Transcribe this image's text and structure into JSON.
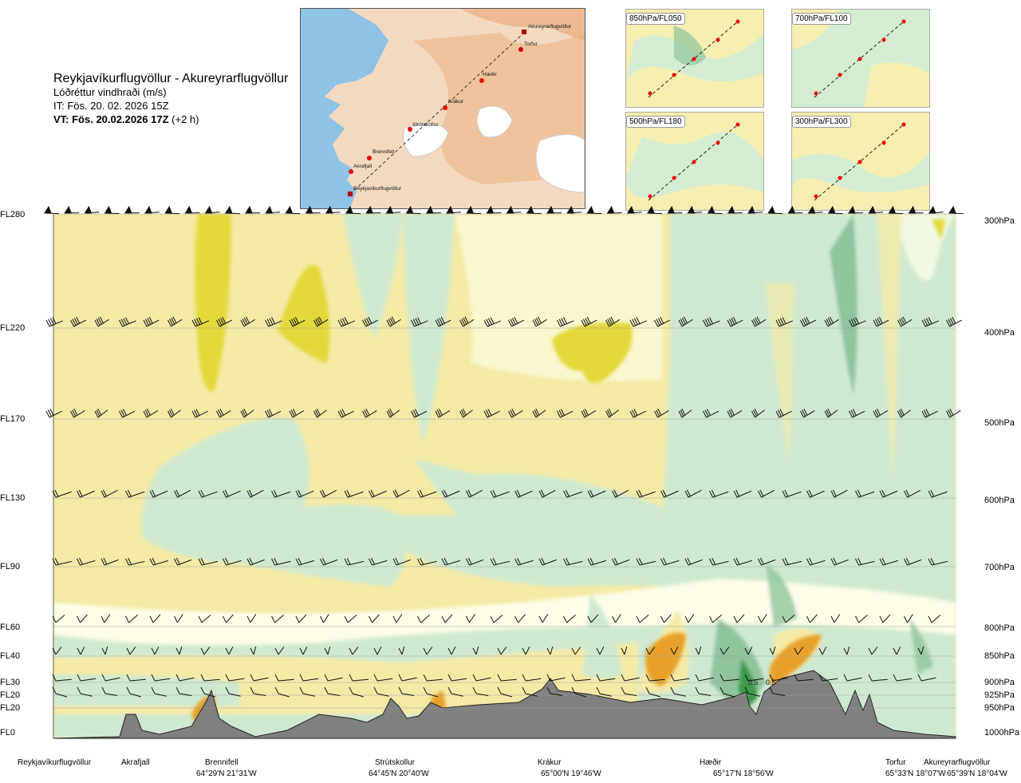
{
  "header": {
    "route": "Reykjavíkurflugvöllur - Akureyrarflugvöllur",
    "quantity": "Lóðréttur vindhraði (m/s)",
    "issue_time": "IT: Fös. 20. 02. 2026 15Z",
    "valid_time": "VT: Fös. 20.02.2026 17Z",
    "lead": "(+2 h)"
  },
  "route_map": {
    "waypoints": [
      "Akureyrarflugvöllur",
      "Torfur",
      "Hæðir",
      "Krákur",
      "Strútskollur",
      "Brennifell",
      "Akrafjall",
      "Reykjavíkurflugvöllur"
    ]
  },
  "thumbnails": [
    {
      "label": "850hPa/FL050"
    },
    {
      "label": "700hPa/FL100"
    },
    {
      "label": "500hPa/FL180"
    },
    {
      "label": "300hPa/FL300"
    }
  ],
  "colors": {
    "strong_up": "#e3d93a",
    "weak_up": "#f4eaa6",
    "neutral": "#fdfde8",
    "weak_down": "#cfe9d0",
    "strong_down": "#8fc49c",
    "very_strong": "#3a9a4a",
    "terrain": "#808080",
    "orange": "#e7a12a"
  },
  "chart_data": {
    "type": "heatmap",
    "title": "Reykjavíkurflugvöllur - Akureyrarflugvöllur",
    "quantity": "Lóðréttur vindhraði (m/s)",
    "flight_levels": [
      {
        "fl": "FL280",
        "hpa": "300hPa"
      },
      {
        "fl": "FL220",
        "hpa": "400hPa"
      },
      {
        "fl": "FL170",
        "hpa": "500hPa"
      },
      {
        "fl": "FL130",
        "hpa": "600hPa"
      },
      {
        "fl": "FL90",
        "hpa": "700hPa"
      },
      {
        "fl": "FL60",
        "hpa": "800hPa"
      },
      {
        "fl": "FL40",
        "hpa": "850hPa"
      },
      {
        "fl": "FL30",
        "hpa": "900hPa"
      },
      {
        "fl": "FL20",
        "hpa": "925hPa"
      },
      {
        "fl": "FL20",
        "hpa": "950hPa"
      },
      {
        "fl": "FL0",
        "hpa": "1000hPa"
      }
    ],
    "stations": [
      {
        "name": "Reykjavíkurflugvöllur",
        "coord": ""
      },
      {
        "name": "Akrafjall",
        "coord": ""
      },
      {
        "name": "Brennifell",
        "coord": "64°29'N 21°31'W"
      },
      {
        "name": "Strútskollur",
        "coord": "64°45'N 20°40'W"
      },
      {
        "name": "Krákur",
        "coord": "65°00'N 19°46'W"
      },
      {
        "name": "Hæðir",
        "coord": "65°17'N 18°56'W"
      },
      {
        "name": "Torfur",
        "coord": "65°33'N 18°07'W"
      },
      {
        "name": "Akureyrarflugvöllur",
        "coord": "65°39'N 18°04'W"
      }
    ],
    "data_labels": [
      "0.5",
      "0.5"
    ]
  }
}
